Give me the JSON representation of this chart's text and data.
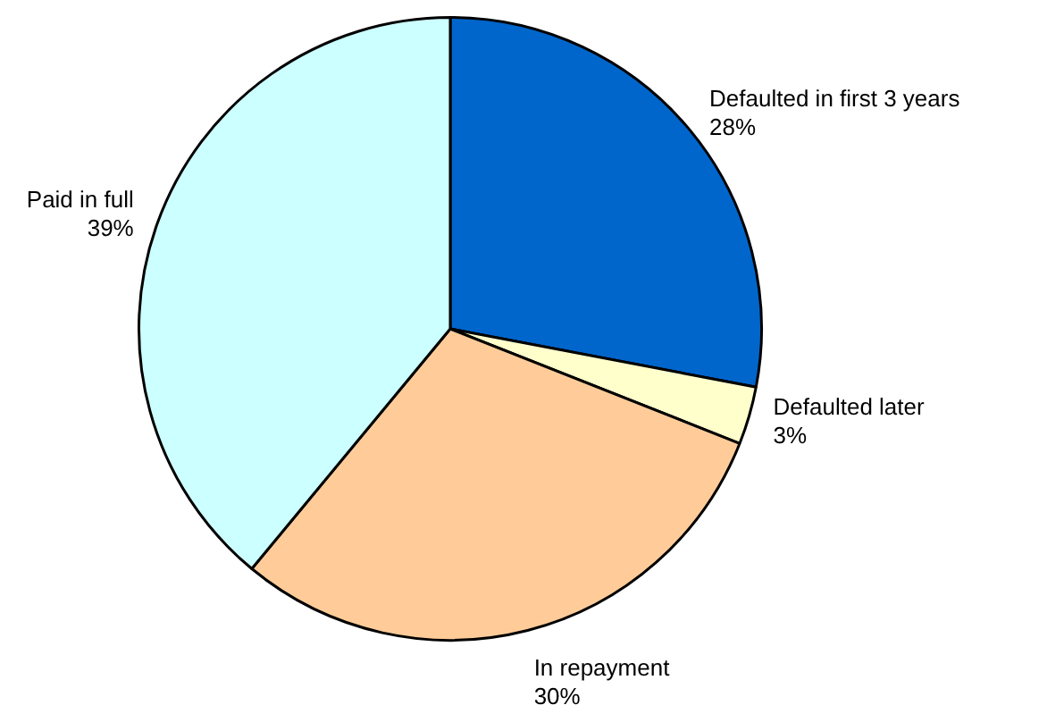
{
  "chart_data": {
    "type": "pie",
    "categories": [
      "Defaulted in first 3 years",
      "Defaulted later",
      "In repayment",
      "Paid in full"
    ],
    "values": [
      28,
      3,
      30,
      39
    ],
    "colors": [
      "#0066cc",
      "#ffffcc",
      "#ffcc99",
      "#ccffff"
    ],
    "value_labels": [
      "28%",
      "3%",
      "30%",
      "39%"
    ],
    "legend": false
  }
}
